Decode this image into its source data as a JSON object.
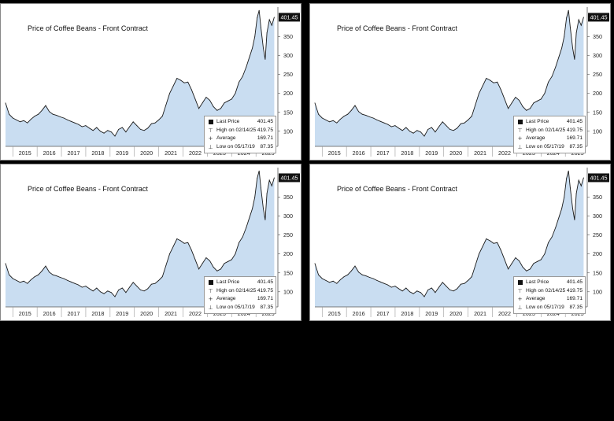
{
  "colors": {
    "background": "#000000",
    "panel": "#ffffff",
    "area_fill": "#c9ddf1",
    "line": "#1a1a1a",
    "tag_bg": "#111111",
    "tag_text": "#ffffff"
  },
  "panels": [
    {
      "title": "Price of Coffee Beans - Front Contract",
      "last_price_tag": "401.45",
      "legend": [
        {
          "symbol": "square-icon",
          "glyph": "",
          "label": "Last Price",
          "value": "401.45"
        },
        {
          "symbol": "high-marker-icon",
          "glyph": "⊤",
          "label": "High on 02/14/25",
          "value": "419.75"
        },
        {
          "symbol": "average-marker-icon",
          "glyph": "+",
          "label": "Average",
          "value": "169.71"
        },
        {
          "symbol": "low-marker-icon",
          "glyph": "⊥",
          "label": "Low on 05/17/19",
          "value": "87.35"
        }
      ]
    },
    {
      "title": "Price of Coffee Beans - Front Contract",
      "last_price_tag": "401.45",
      "legend": [
        {
          "symbol": "square-icon",
          "glyph": "",
          "label": "Last Price",
          "value": "401.45"
        },
        {
          "symbol": "high-marker-icon",
          "glyph": "⊤",
          "label": "High on 02/14/25",
          "value": "419.75"
        },
        {
          "symbol": "average-marker-icon",
          "glyph": "+",
          "label": "Average",
          "value": "169.71"
        },
        {
          "symbol": "low-marker-icon",
          "glyph": "⊥",
          "label": "Low on 05/17/19",
          "value": "87.35"
        }
      ]
    },
    {
      "title": "Price of Coffee Beans - Front Contract",
      "last_price_tag": "401.45",
      "legend": [
        {
          "symbol": "square-icon",
          "glyph": "",
          "label": "Last Price",
          "value": "401.45"
        },
        {
          "symbol": "high-marker-icon",
          "glyph": "⊤",
          "label": "High on 02/14/25",
          "value": "419.75"
        },
        {
          "symbol": "average-marker-icon",
          "glyph": "+",
          "label": "Average",
          "value": "169.71"
        },
        {
          "symbol": "low-marker-icon",
          "glyph": "⊥",
          "label": "Low on 05/17/19",
          "value": "87.35"
        }
      ]
    },
    {
      "title": "Price of Coffee Beans - Front Contract",
      "last_price_tag": "401.45",
      "legend": [
        {
          "symbol": "square-icon",
          "glyph": "",
          "label": "Last Price",
          "value": "401.45"
        },
        {
          "symbol": "high-marker-icon",
          "glyph": "⊤",
          "label": "High on 02/14/25",
          "value": "419.75"
        },
        {
          "symbol": "average-marker-icon",
          "glyph": "+",
          "label": "Average",
          "value": "169.71"
        },
        {
          "symbol": "low-marker-icon",
          "glyph": "⊥",
          "label": "Low on 05/17/19",
          "value": "87.35"
        }
      ]
    }
  ],
  "chart_data": {
    "type": "area",
    "title": "Price of Coffee Beans - Front Contract",
    "xlabel": "",
    "ylabel": "",
    "x_ticks": [
      "2015",
      "2016",
      "2017",
      "2018",
      "2019",
      "2020",
      "2021",
      "2022",
      "2023",
      "2024",
      "2025"
    ],
    "y_ticks": [
      100,
      150,
      200,
      250,
      300,
      350
    ],
    "ylim": [
      60,
      420
    ],
    "xlim": [
      2014.7,
      2025.9
    ],
    "grid": false,
    "x": [
      2014.7,
      2014.85,
      2015.0,
      2015.15,
      2015.3,
      2015.45,
      2015.6,
      2015.75,
      2015.9,
      2016.05,
      2016.2,
      2016.35,
      2016.5,
      2016.65,
      2016.8,
      2016.95,
      2017.1,
      2017.25,
      2017.4,
      2017.55,
      2017.7,
      2017.85,
      2018.0,
      2018.15,
      2018.3,
      2018.45,
      2018.6,
      2018.75,
      2018.9,
      2019.05,
      2019.2,
      2019.35,
      2019.5,
      2019.65,
      2019.8,
      2019.95,
      2020.1,
      2020.25,
      2020.4,
      2020.55,
      2020.7,
      2020.85,
      2021.0,
      2021.15,
      2021.3,
      2021.45,
      2021.6,
      2021.75,
      2021.9,
      2022.05,
      2022.2,
      2022.35,
      2022.5,
      2022.65,
      2022.8,
      2022.95,
      2023.1,
      2023.25,
      2023.4,
      2023.55,
      2023.7,
      2023.85,
      2024.0,
      2024.15,
      2024.3,
      2024.45,
      2024.6,
      2024.75,
      2024.85,
      2024.95,
      2025.05,
      2025.13,
      2025.2,
      2025.3,
      2025.38,
      2025.45,
      2025.55,
      2025.65,
      2025.75
    ],
    "values": [
      175,
      145,
      135,
      130,
      125,
      128,
      122,
      132,
      140,
      145,
      155,
      168,
      152,
      145,
      142,
      138,
      135,
      130,
      126,
      122,
      118,
      112,
      115,
      108,
      102,
      110,
      100,
      95,
      102,
      98,
      87,
      105,
      110,
      98,
      112,
      125,
      115,
      105,
      102,
      108,
      120,
      122,
      130,
      140,
      170,
      200,
      220,
      240,
      235,
      228,
      230,
      210,
      185,
      160,
      175,
      190,
      182,
      165,
      155,
      160,
      175,
      180,
      185,
      200,
      230,
      245,
      270,
      300,
      320,
      350,
      400,
      419.75,
      375,
      320,
      290,
      360,
      395,
      380,
      401.45
    ],
    "legend": [
      {
        "label": "Last Price",
        "value": 401.45
      },
      {
        "label": "High on 02/14/25",
        "value": 419.75
      },
      {
        "label": "Average",
        "value": 169.71
      },
      {
        "label": "Low on 05/17/19",
        "value": 87.35
      }
    ],
    "last_price_tag": 401.45,
    "panel_count": 4
  }
}
